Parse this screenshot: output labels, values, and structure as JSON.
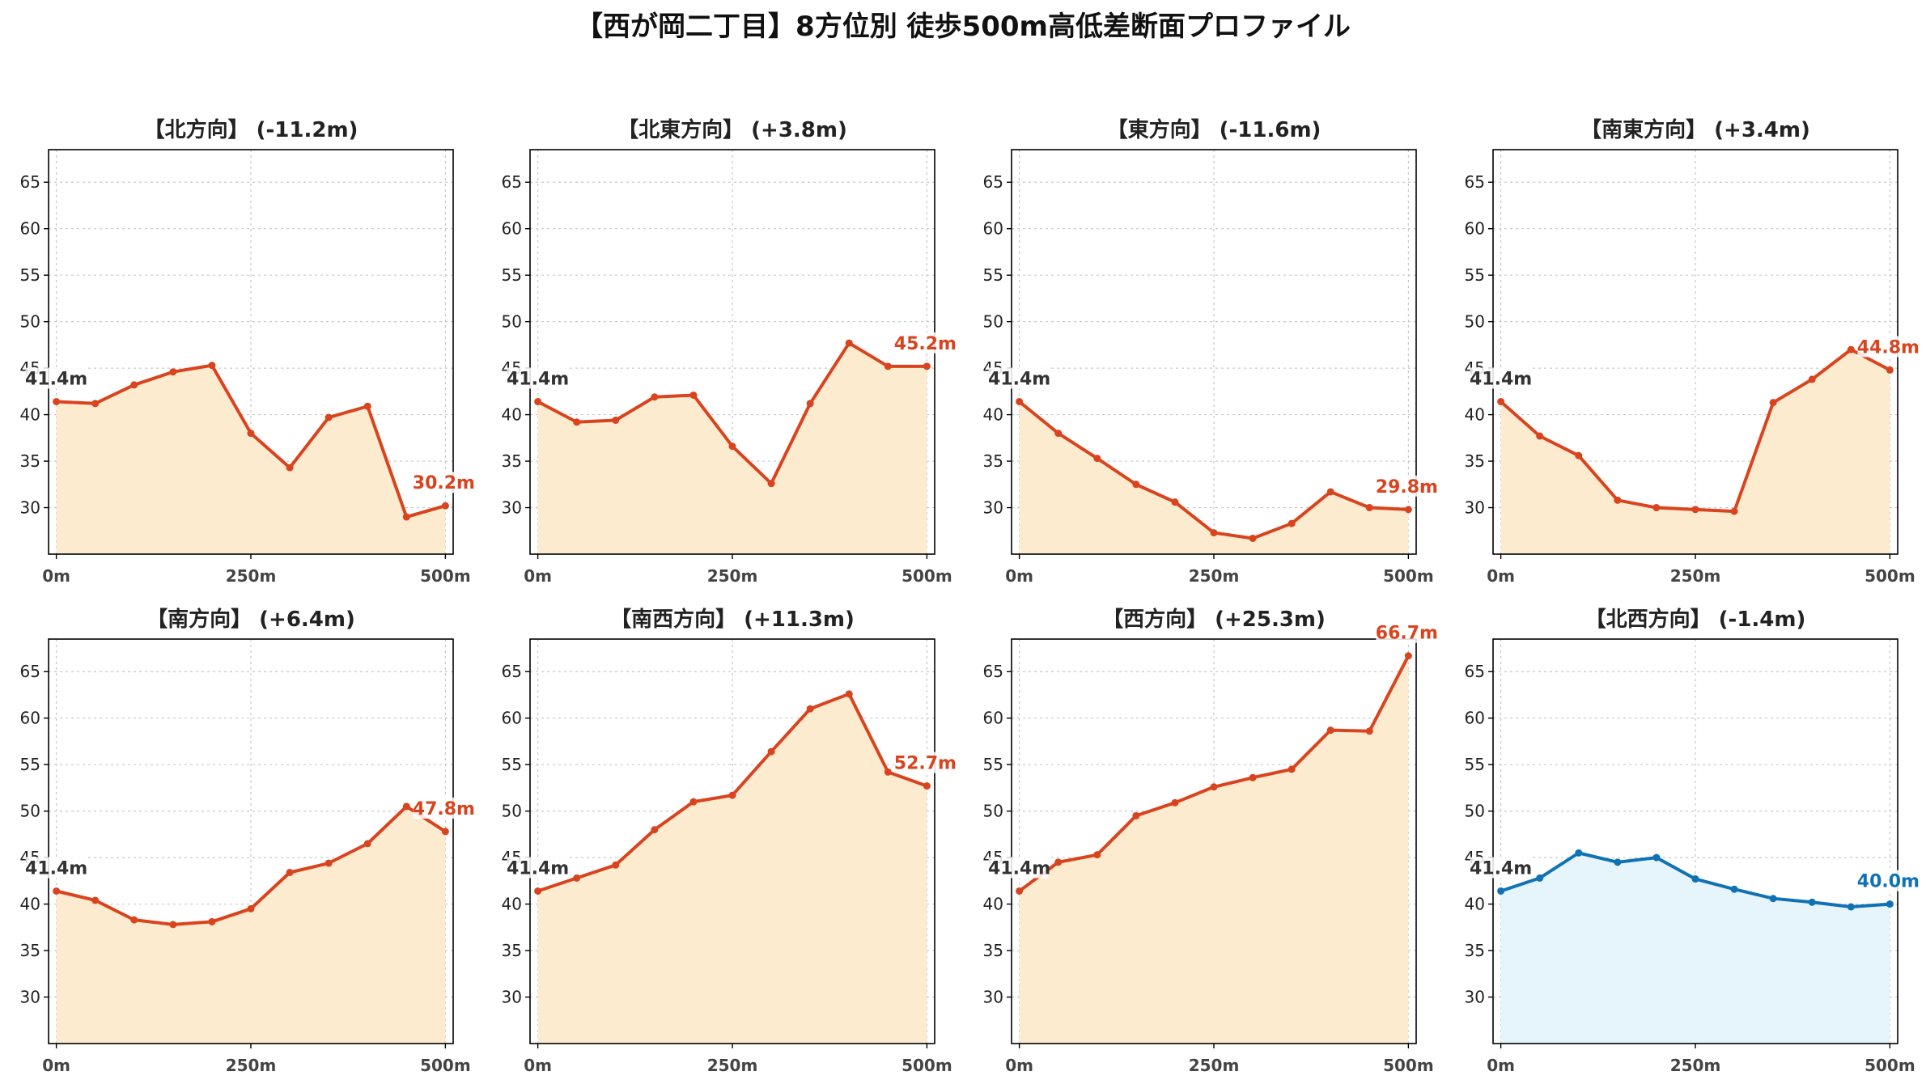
{
  "title": "【西が岡二丁目】8方位別 徒歩500m高低差断面プロファイル",
  "colors": {
    "descent_line": "#d9441e",
    "descent_fill": "#fdebd0",
    "ascent_line": "#0f72b5",
    "ascent_fill": "#e6f4fb"
  },
  "chart_data": [
    {
      "type": "area",
      "title": "【北方向】 (-11.2m)",
      "x": [
        0,
        50,
        100,
        150,
        200,
        250,
        300,
        350,
        400,
        450,
        500
      ],
      "values": [
        41.4,
        41.2,
        43.2,
        44.6,
        45.3,
        38.0,
        34.3,
        39.7,
        40.9,
        29.0,
        30.2
      ],
      "start_label": "41.4m",
      "end_label": "30.2m",
      "color": "orange",
      "xticks": [
        "0m",
        "250m",
        "500m"
      ],
      "yticks": [
        "30",
        "35",
        "40",
        "45",
        "50",
        "55",
        "60",
        "65"
      ],
      "ylim": [
        25,
        68.5
      ],
      "xlim": [
        -10,
        510
      ],
      "grid": true
    },
    {
      "type": "area",
      "title": "【北東方向】 (+3.8m)",
      "x": [
        0,
        50,
        100,
        150,
        200,
        250,
        300,
        350,
        400,
        450,
        500
      ],
      "values": [
        41.4,
        39.2,
        39.4,
        41.9,
        42.1,
        36.6,
        32.6,
        41.2,
        47.7,
        45.2,
        45.2
      ],
      "start_label": "41.4m",
      "end_label": "45.2m",
      "color": "orange",
      "xticks": [
        "0m",
        "250m",
        "500m"
      ],
      "yticks": [
        "30",
        "35",
        "40",
        "45",
        "50",
        "55",
        "60",
        "65"
      ],
      "ylim": [
        25,
        68.5
      ],
      "xlim": [
        -10,
        510
      ],
      "grid": true
    },
    {
      "type": "area",
      "title": "【東方向】 (-11.6m)",
      "x": [
        0,
        50,
        100,
        150,
        200,
        250,
        300,
        350,
        400,
        450,
        500
      ],
      "values": [
        41.4,
        38.0,
        35.3,
        32.5,
        30.6,
        27.3,
        26.7,
        28.3,
        31.7,
        30.0,
        29.8
      ],
      "start_label": "41.4m",
      "end_label": "29.8m",
      "color": "orange",
      "xticks": [
        "0m",
        "250m",
        "500m"
      ],
      "yticks": [
        "30",
        "35",
        "40",
        "45",
        "50",
        "55",
        "60",
        "65"
      ],
      "ylim": [
        25,
        68.5
      ],
      "xlim": [
        -10,
        510
      ],
      "grid": true
    },
    {
      "type": "area",
      "title": "【南東方向】 (+3.4m)",
      "x": [
        0,
        50,
        100,
        150,
        200,
        250,
        300,
        350,
        400,
        450,
        500
      ],
      "values": [
        41.4,
        37.7,
        35.6,
        30.8,
        30.0,
        29.8,
        29.6,
        41.3,
        43.8,
        47.0,
        44.8
      ],
      "start_label": "41.4m",
      "end_label": "44.8m",
      "color": "orange",
      "xticks": [
        "0m",
        "250m",
        "500m"
      ],
      "yticks": [
        "30",
        "35",
        "40",
        "45",
        "50",
        "55",
        "60",
        "65"
      ],
      "ylim": [
        25,
        68.5
      ],
      "xlim": [
        -10,
        510
      ],
      "grid": true
    },
    {
      "type": "area",
      "title": "【南方向】 (+6.4m)",
      "x": [
        0,
        50,
        100,
        150,
        200,
        250,
        300,
        350,
        400,
        450,
        500
      ],
      "values": [
        41.4,
        40.4,
        38.3,
        37.8,
        38.1,
        39.5,
        43.4,
        44.4,
        46.5,
        50.5,
        47.8
      ],
      "start_label": "41.4m",
      "end_label": "47.8m",
      "color": "orange",
      "xticks": [
        "0m",
        "250m",
        "500m"
      ],
      "yticks": [
        "30",
        "35",
        "40",
        "45",
        "50",
        "55",
        "60",
        "65"
      ],
      "ylim": [
        25,
        68.5
      ],
      "xlim": [
        -10,
        510
      ],
      "grid": true
    },
    {
      "type": "area",
      "title": "【南西方向】 (+11.3m)",
      "x": [
        0,
        50,
        100,
        150,
        200,
        250,
        300,
        350,
        400,
        450,
        500
      ],
      "values": [
        41.4,
        42.8,
        44.2,
        48.0,
        51.0,
        51.7,
        56.4,
        61.0,
        62.6,
        54.2,
        52.7
      ],
      "start_label": "41.4m",
      "end_label": "52.7m",
      "color": "orange",
      "xticks": [
        "0m",
        "250m",
        "500m"
      ],
      "yticks": [
        "30",
        "35",
        "40",
        "45",
        "50",
        "55",
        "60",
        "65"
      ],
      "ylim": [
        25,
        68.5
      ],
      "xlim": [
        -10,
        510
      ],
      "grid": true
    },
    {
      "type": "area",
      "title": "【西方向】 (+25.3m)",
      "x": [
        0,
        50,
        100,
        150,
        200,
        250,
        300,
        350,
        400,
        450,
        500
      ],
      "values": [
        41.4,
        44.5,
        45.3,
        49.5,
        50.9,
        52.6,
        53.6,
        54.5,
        58.7,
        58.6,
        66.7
      ],
      "start_label": "41.4m",
      "end_label": "66.7m",
      "color": "orange",
      "xticks": [
        "0m",
        "250m",
        "500m"
      ],
      "yticks": [
        "30",
        "35",
        "40",
        "45",
        "50",
        "55",
        "60",
        "65"
      ],
      "ylim": [
        25,
        68.5
      ],
      "xlim": [
        -10,
        510
      ],
      "grid": true
    },
    {
      "type": "area",
      "title": "【北西方向】 (-1.4m)",
      "x": [
        0,
        50,
        100,
        150,
        200,
        250,
        300,
        350,
        400,
        450,
        500
      ],
      "values": [
        41.4,
        42.8,
        45.5,
        44.5,
        45.0,
        42.7,
        41.6,
        40.6,
        40.2,
        39.7,
        40.0
      ],
      "start_label": "41.4m",
      "end_label": "40.0m",
      "color": "blue",
      "xticks": [
        "0m",
        "250m",
        "500m"
      ],
      "yticks": [
        "30",
        "35",
        "40",
        "45",
        "50",
        "55",
        "60",
        "65"
      ],
      "ylim": [
        25,
        68.5
      ],
      "xlim": [
        -10,
        510
      ],
      "grid": true
    }
  ]
}
